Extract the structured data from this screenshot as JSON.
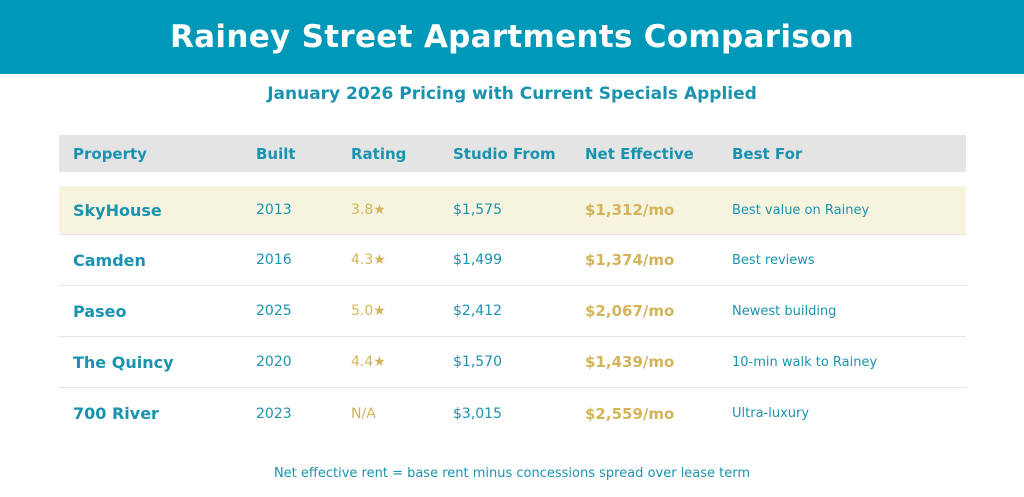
{
  "title": "Rainey Street Apartments Comparison",
  "subtitle": "January 2026 Pricing with Current Specials Applied",
  "table": {
    "headers": {
      "property": "Property",
      "built": "Built",
      "rating": "Rating",
      "studio": "Studio From",
      "net": "Net Effective",
      "best": "Best For"
    },
    "rows": [
      {
        "property": "SkyHouse",
        "built": "2013",
        "rating": "3.8★",
        "studio": "$1,575",
        "net": "$1,312/mo",
        "best": "Best value on Rainey"
      },
      {
        "property": "Camden",
        "built": "2016",
        "rating": "4.3★",
        "studio": "$1,499",
        "net": "$1,374/mo",
        "best": "Best reviews"
      },
      {
        "property": "Paseo",
        "built": "2025",
        "rating": "5.0★",
        "studio": "$2,412",
        "net": "$2,067/mo",
        "best": "Newest building"
      },
      {
        "property": "The Quincy",
        "built": "2020",
        "rating": "4.4★",
        "studio": "$1,570",
        "net": "$1,439/mo",
        "best": "10-min walk to Rainey"
      },
      {
        "property": "700 River",
        "built": "2023",
        "rating": "N/A",
        "studio": "$3,015",
        "net": "$2,559/mo",
        "best": "Ultra-luxury"
      }
    ]
  },
  "footnote": "Net effective rent = base rent minus concessions spread over lease term",
  "colors": {
    "banner": "#0098b8",
    "accent_text": "#1a93b0",
    "gold": "#d4b45a",
    "highlight_row": "#f6f4df",
    "header_row": "#e4e4e4"
  }
}
